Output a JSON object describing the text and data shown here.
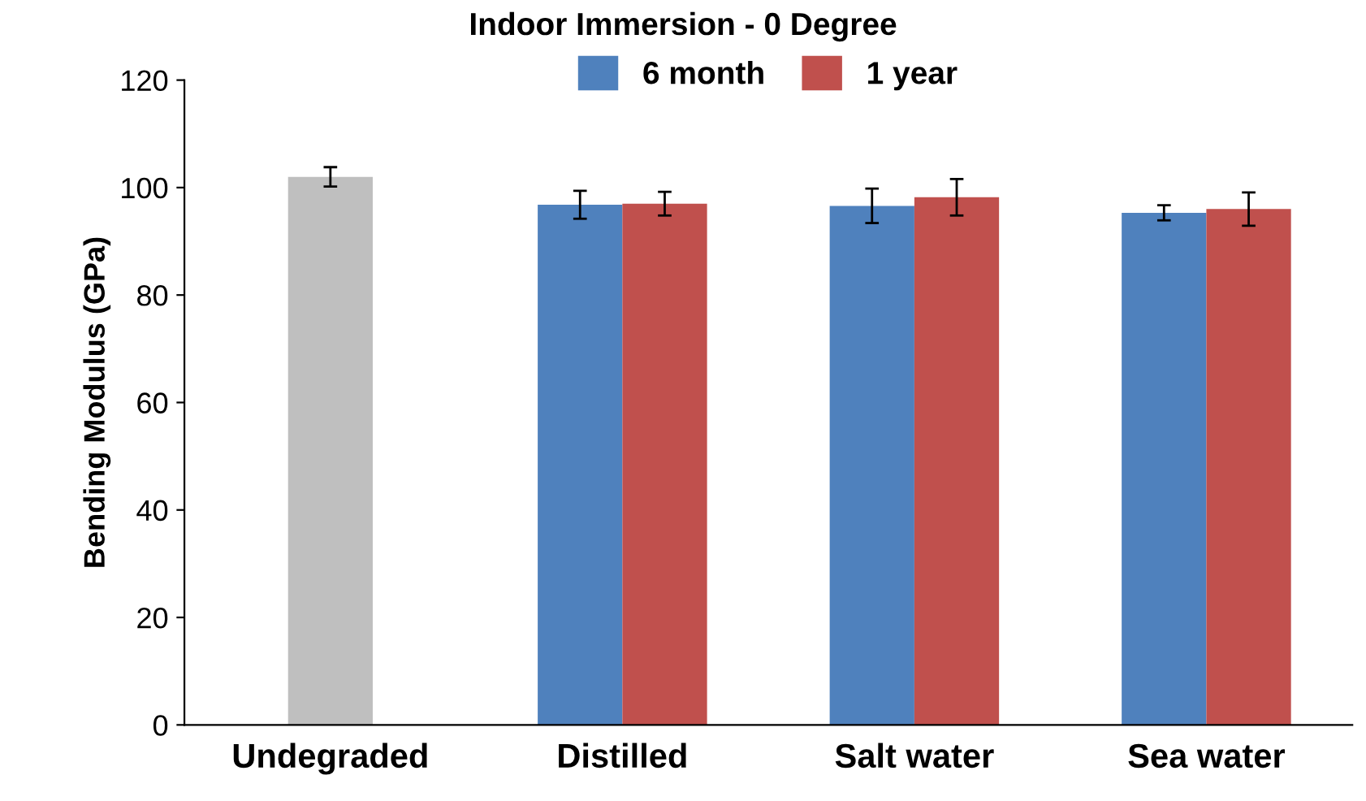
{
  "chart_data": {
    "type": "bar",
    "title": "Indoor Immersion - 0 Degree",
    "ylabel": "Bending Modulus (GPa)",
    "categories": [
      "Undegraded",
      "Distilled",
      "Salt water",
      "Sea water"
    ],
    "series": [
      {
        "color": "#bfbfbf",
        "values": [
          102,
          null,
          null,
          null
        ],
        "errors": [
          1.8,
          null,
          null,
          null
        ]
      },
      {
        "name": "6 month",
        "color": "#4f81bd",
        "values": [
          null,
          96.8,
          96.6,
          95.3
        ],
        "errors": [
          null,
          2.6,
          3.2,
          1.4
        ]
      },
      {
        "name": "1 year",
        "color": "#c0504d",
        "values": [
          null,
          97.0,
          98.2,
          96.0
        ],
        "errors": [
          null,
          2.2,
          3.4,
          3.1
        ]
      }
    ],
    "ylim": [
      0,
      120
    ],
    "yticks": [
      0,
      20,
      40,
      60,
      80,
      100,
      120
    ],
    "grid": false,
    "legend": "top"
  }
}
